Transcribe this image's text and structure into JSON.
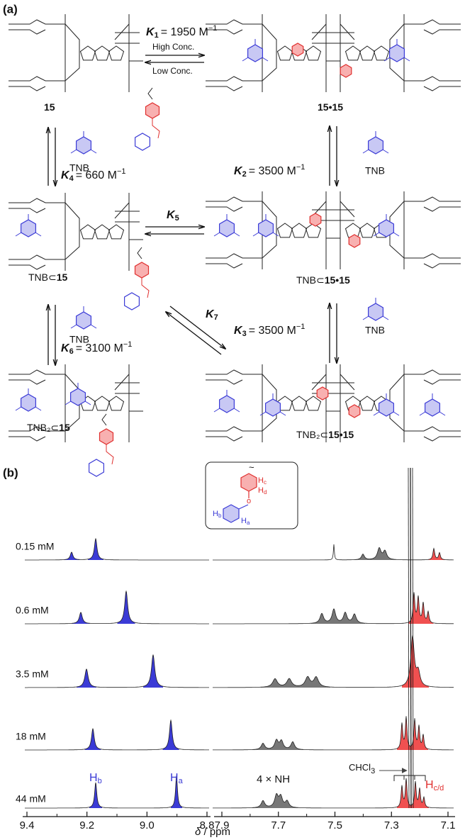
{
  "panel_a": {
    "label": "(a)",
    "species": [
      {
        "number": "15"
      },
      {
        "number": "15•15"
      },
      {
        "prefix": "TNB⊂",
        "number": "15"
      },
      {
        "prefix": "TNB⊂",
        "number": "15•15"
      },
      {
        "prefix": "TNB₂⊂",
        "number": "15"
      },
      {
        "prefix": "TNB₂⊂",
        "number": "15•15"
      }
    ],
    "equilibria": [
      {
        "symbol": "K",
        "sub": "1",
        "text": "= 1950 M",
        "sup": "−1"
      },
      {
        "symbol": "K",
        "sub": "2",
        "text": "= 3500 M",
        "sup": "−1"
      },
      {
        "symbol": "K",
        "sub": "3",
        "text": "= 3500 M",
        "sup": "−1"
      },
      {
        "symbol": "K",
        "sub": "4",
        "text": "= 660 M",
        "sup": "−1"
      },
      {
        "symbol": "K",
        "sub": "5"
      },
      {
        "symbol": "K",
        "sub": "6",
        "text": "= 3100 M",
        "sup": "−1"
      },
      {
        "symbol": "K",
        "sub": "7"
      }
    ],
    "arrow_labels": [
      "High Conc.",
      "Low Conc."
    ],
    "reagents": [
      "TNB",
      "TNB",
      "TNB",
      "TNB"
    ]
  },
  "panel_b": {
    "label": "(b)",
    "concentrations": [
      "0.15 mM",
      "0.6 mM",
      "3.5 mM",
      "18 mM",
      "44 mM"
    ],
    "x_axis": {
      "symbol": "δ",
      "unit": "/ ppm",
      "ticks_left": [
        "9.4",
        "9.2",
        "9.0",
        "8.8"
      ],
      "ticks_right": [
        "7.9",
        "7.7",
        "7.5",
        "7.3",
        "7.1"
      ]
    },
    "annotations": {
      "hb": {
        "main": "H",
        "sub": "b"
      },
      "ha": {
        "main": "H",
        "sub": "a"
      },
      "nh": "4 × NH",
      "solvent": {
        "main": "CHCl",
        "sub": "3"
      },
      "hcd": {
        "main": "H",
        "sub": "c/d"
      }
    },
    "inset": [
      {
        "main": "H",
        "sub": "c"
      },
      {
        "main": "H",
        "sub": "d"
      },
      {
        "main": "H",
        "sub": "b"
      },
      {
        "main": "H",
        "sub": "a"
      }
    ]
  }
}
